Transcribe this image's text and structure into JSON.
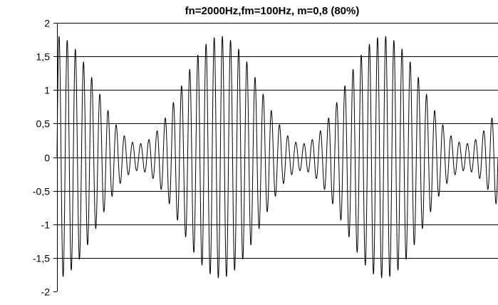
{
  "chart_data": {
    "type": "line",
    "title": "fn=2000Hz,fm=100Hz, m=0,8 (80%)",
    "xlabel": "",
    "ylabel": "",
    "ylim": [
      -2,
      2
    ],
    "y_ticks": [
      2,
      1.5,
      1,
      0.5,
      0,
      -0.5,
      -1,
      -1.5,
      -2
    ],
    "y_tick_labels": [
      "2",
      "1,5",
      "1",
      "0,5",
      "0",
      "-0,5",
      "-1",
      "-1,5",
      "-2"
    ],
    "grid": "horizontal",
    "legend": "none",
    "signal": {
      "kind": "amplitude-modulated sine",
      "carrier_frequency_hz": 2000,
      "modulating_frequency_hz": 100,
      "modulation_index": 0.8,
      "carrier_amplitude": 1,
      "formula": "y = (1 + 0.8*cos(2*pi*100*t)) * sin(2*pi*2000*t)",
      "shown_modulation_periods": 2.7,
      "peak_amplitude": 1.8,
      "trough_amplitude": 0.2
    },
    "colors": {
      "line": "#000000",
      "grid": "#000000",
      "background": "#ffffff"
    }
  }
}
